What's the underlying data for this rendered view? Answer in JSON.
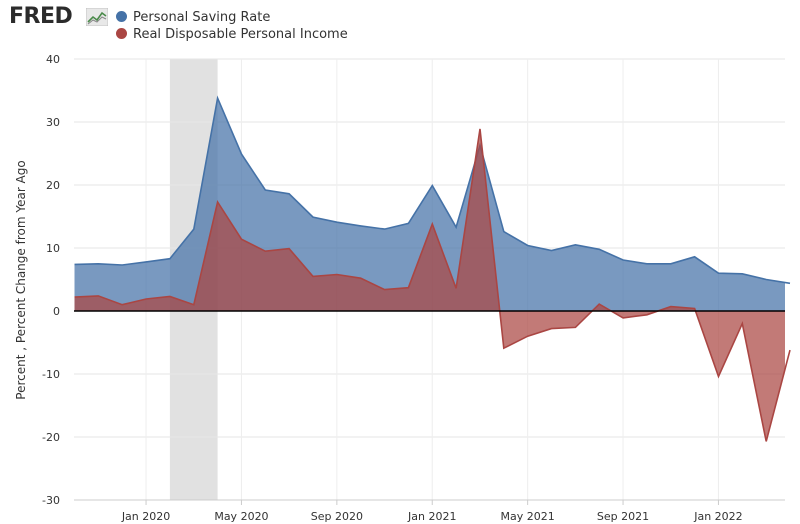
{
  "logo": {
    "text": "FRED"
  },
  "chart_data": {
    "type": "area",
    "ylabel": "Percent , Percent Change from Year Ago",
    "ylim": [
      -30,
      40
    ],
    "y_ticks": [
      40,
      30,
      20,
      10,
      0,
      -10,
      -20,
      -30
    ],
    "x_tick_labels": [
      {
        "label": "Jan 2020",
        "date": "2020-01"
      },
      {
        "label": "May 2020",
        "date": "2020-05"
      },
      {
        "label": "Sep 2020",
        "date": "2020-09"
      },
      {
        "label": "Jan 2021",
        "date": "2021-01"
      },
      {
        "label": "May 2021",
        "date": "2021-05"
      },
      {
        "label": "Sep 2021",
        "date": "2021-09"
      },
      {
        "label": "Jan 2022",
        "date": "2022-01"
      }
    ],
    "recession": {
      "start": "2020-02",
      "end": "2020-04"
    },
    "grid": true,
    "legend_position": "top-left",
    "x": [
      "2019-10",
      "2019-11",
      "2019-12",
      "2020-01",
      "2020-02",
      "2020-03",
      "2020-04",
      "2020-05",
      "2020-06",
      "2020-07",
      "2020-08",
      "2020-09",
      "2020-10",
      "2020-11",
      "2020-12",
      "2021-01",
      "2021-02",
      "2021-03",
      "2021-04",
      "2021-05",
      "2021-06",
      "2021-07",
      "2021-08",
      "2021-09",
      "2021-10",
      "2021-11",
      "2021-12",
      "2022-01",
      "2022-02",
      "2022-03",
      "2022-04",
      "2022-05"
    ],
    "series": [
      {
        "name": "Personal Saving Rate",
        "color": "#4572a7",
        "values": [
          7.4,
          7.5,
          7.3,
          7.8,
          8.3,
          13.0,
          33.8,
          24.9,
          19.2,
          18.6,
          14.9,
          14.1,
          13.5,
          13.0,
          13.9,
          19.9,
          13.3,
          26.3,
          12.6,
          10.4,
          9.6,
          10.5,
          9.8,
          8.1,
          7.5,
          7.5,
          8.6,
          6.0,
          5.9,
          5.0,
          4.4,
          null
        ]
      },
      {
        "name": "Real Disposable Personal Income",
        "color": "#aa4643",
        "values": [
          2.2,
          2.4,
          1.0,
          1.9,
          2.3,
          1.0,
          17.3,
          11.4,
          9.5,
          9.9,
          5.5,
          5.8,
          5.2,
          3.4,
          3.7,
          13.8,
          3.6,
          28.9,
          -5.9,
          -4.0,
          -2.8,
          -2.6,
          1.1,
          -1.1,
          -0.6,
          0.7,
          0.4,
          -10.4,
          -2.0,
          -20.7,
          -6.2,
          null
        ]
      }
    ]
  }
}
